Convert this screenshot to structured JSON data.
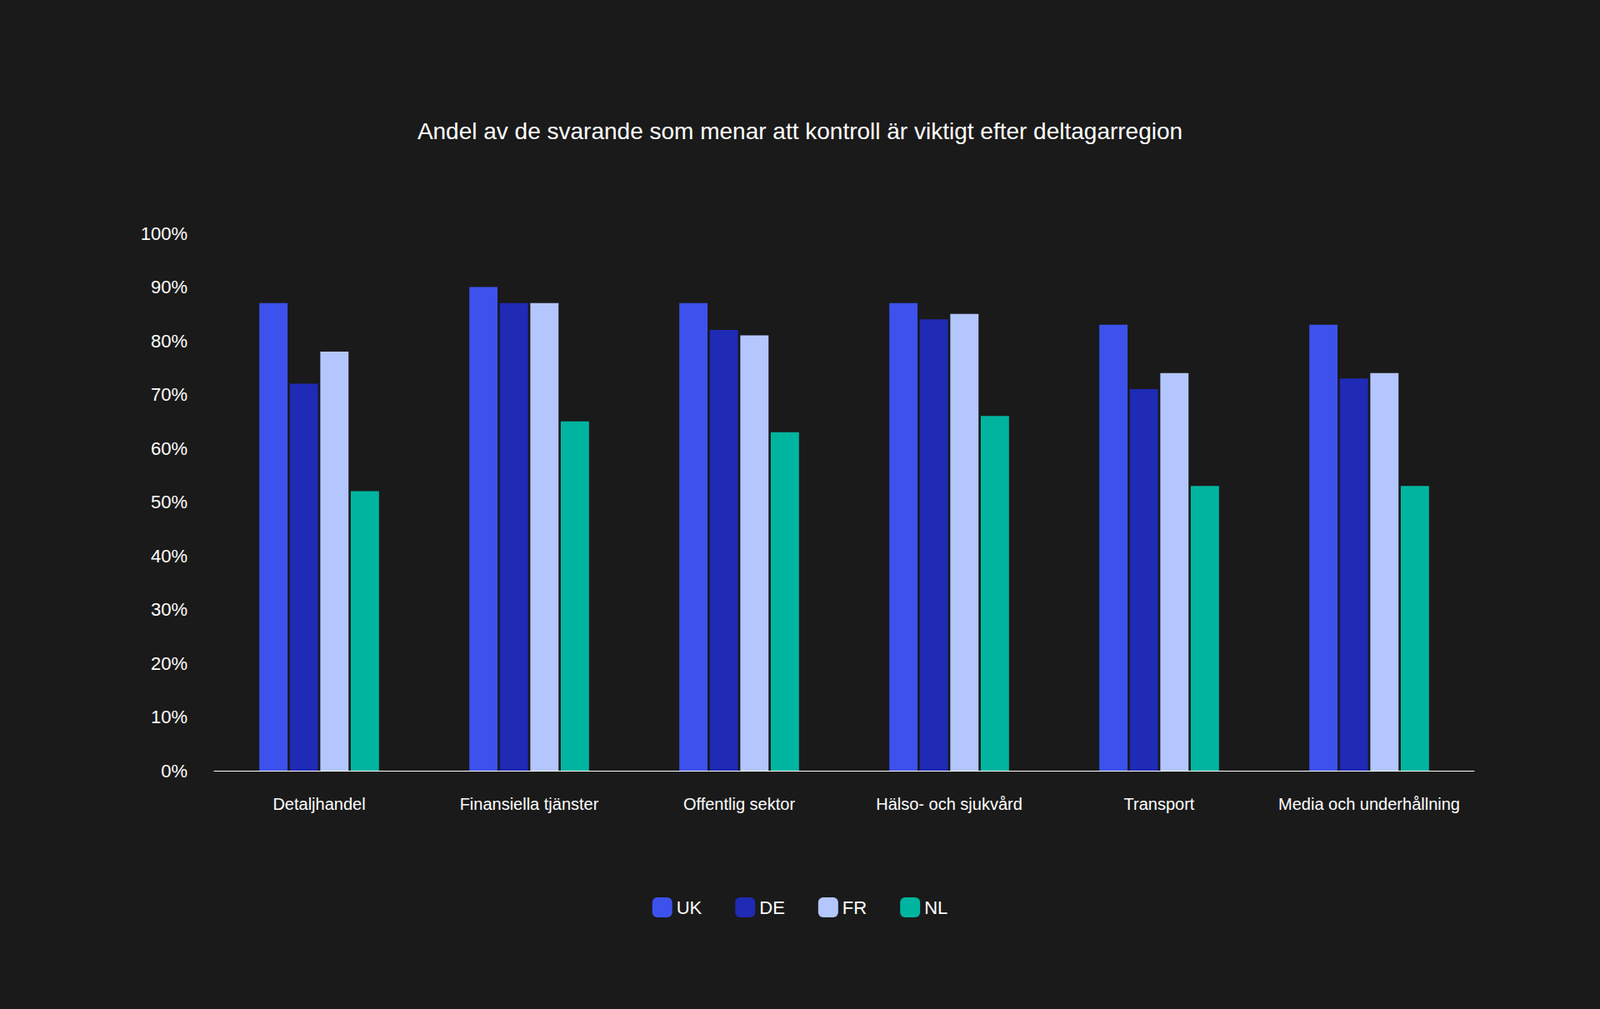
{
  "chart_data": {
    "type": "bar",
    "title": "Andel av de svarande som menar att kontroll är viktigt efter deltagarregion",
    "categories": [
      "Detaljhandel",
      "Finansiella tjänster",
      "Offentlig sektor",
      "Hälso- och sjukvård",
      "Transport",
      "Media och underhållning"
    ],
    "series": [
      {
        "name": "UK",
        "color": "#3d52ec",
        "values": [
          87,
          90,
          87,
          87,
          83,
          83
        ]
      },
      {
        "name": "DE",
        "color": "#1f2ab5",
        "values": [
          72,
          87,
          82,
          84,
          71,
          73
        ]
      },
      {
        "name": "FR",
        "color": "#b3c6fd",
        "values": [
          78,
          87,
          81,
          85,
          74,
          74
        ]
      },
      {
        "name": "NL",
        "color": "#00b5a0",
        "values": [
          52,
          65,
          63,
          66,
          53,
          53
        ]
      }
    ],
    "ylim": [
      0,
      100
    ],
    "yticks": [
      {
        "value": 0,
        "label": "0%"
      },
      {
        "value": 10,
        "label": "10%"
      },
      {
        "value": 20,
        "label": "20%"
      },
      {
        "value": 30,
        "label": "30%"
      },
      {
        "value": 40,
        "label": "40%"
      },
      {
        "value": 50,
        "label": "50%"
      },
      {
        "value": 60,
        "label": "60%"
      },
      {
        "value": 70,
        "label": "70%"
      },
      {
        "value": 80,
        "label": "80%"
      },
      {
        "value": 90,
        "label": "90%"
      },
      {
        "value": 100,
        "label": "100%"
      }
    ],
    "grid": false,
    "legend": "bottom"
  }
}
